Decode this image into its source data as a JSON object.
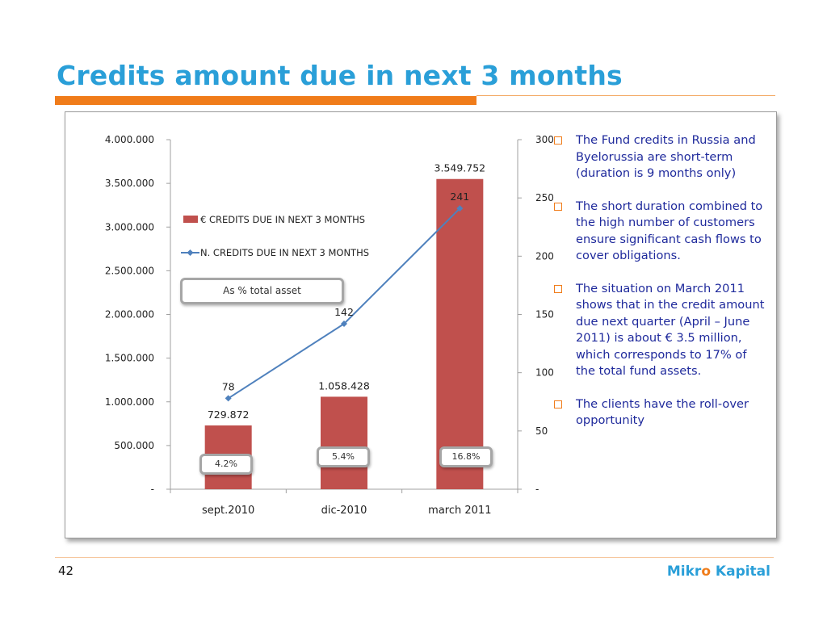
{
  "slide": {
    "title": "Credits amount due in next 3 months",
    "page_number": "42",
    "brand": {
      "part1": "Mikr",
      "accent": "o",
      "part2": " Kapital"
    }
  },
  "colors": {
    "bar": "#c0504d",
    "line": "#4f81bd",
    "title": "#2a9fd8",
    "accent": "#f07c1a",
    "bullet_text": "#1f2a9c"
  },
  "chart_data": {
    "type": "bar",
    "categories": [
      "sept.2010",
      "dic-2010",
      "march 2011"
    ],
    "series": [
      {
        "name": "€ CREDITS DUE IN NEXT 3 MONTHS",
        "type": "bar",
        "axis": "left",
        "values": [
          729872,
          1058428,
          3549752
        ],
        "labels": [
          "729.872",
          "1.058.428",
          "3.549.752"
        ]
      },
      {
        "name": "N. CREDITS DUE IN NEXT 3 MONTHS",
        "type": "line",
        "axis": "right",
        "values": [
          78,
          142,
          241
        ],
        "labels": [
          "78",
          "142",
          "241"
        ]
      }
    ],
    "y_left": {
      "range": [
        0,
        4000000
      ],
      "ticks": [
        0,
        500000,
        1000000,
        1500000,
        2000000,
        2500000,
        3000000,
        3500000,
        4000000
      ],
      "tick_labels": [
        "-",
        "500.000",
        "1.000.000",
        "1.500.000",
        "2.000.000",
        "2.500.000",
        "3.000.000",
        "3.500.000",
        "4.000.000"
      ]
    },
    "y_right": {
      "range": [
        0,
        300
      ],
      "ticks": [
        0,
        50,
        100,
        150,
        200,
        250,
        300
      ],
      "tick_labels": [
        "-",
        "50",
        "100",
        "150",
        "200",
        "250",
        "300"
      ]
    },
    "legend_position": "upper-left",
    "grid": false,
    "annotations": {
      "callout_label": "As % total asset",
      "percent_boxes": [
        "4.2%",
        "5.4%",
        "16.8%"
      ]
    }
  },
  "bullets": [
    "The Fund credits in Russia and Byelorussia are short-term (duration is 9 months only)",
    "The short duration combined to the high number of customers ensure significant cash flows to cover obligations.",
    "The situation on March 2011 shows that in the credit amount due next quarter (April – June 2011) is about € 3.5 million, which corresponds to 17% of the total fund assets.",
    "The clients have the roll-over opportunity"
  ]
}
